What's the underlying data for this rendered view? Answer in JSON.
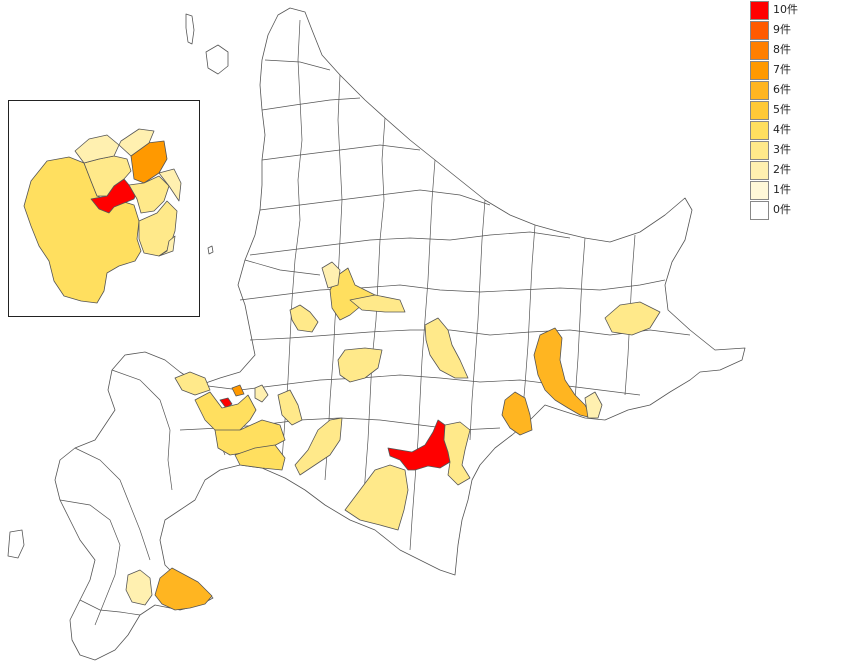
{
  "legend": {
    "items": [
      {
        "label": "10件",
        "color": "#ff0000"
      },
      {
        "label": "9件",
        "color": "#ff5a00"
      },
      {
        "label": "8件",
        "color": "#ff7f00"
      },
      {
        "label": "7件",
        "color": "#ff9900"
      },
      {
        "label": "6件",
        "color": "#ffb521"
      },
      {
        "label": "5件",
        "color": "#ffc937"
      },
      {
        "label": "4件",
        "color": "#ffdf5f"
      },
      {
        "label": "3件",
        "color": "#ffe98a"
      },
      {
        "label": "2件",
        "color": "#fff0b0"
      },
      {
        "label": "1件",
        "color": "#fff8d8"
      },
      {
        "label": "0件",
        "color": "#ffffff"
      }
    ]
  },
  "colors": {
    "border": "#555555",
    "background": "#ffffff"
  }
}
